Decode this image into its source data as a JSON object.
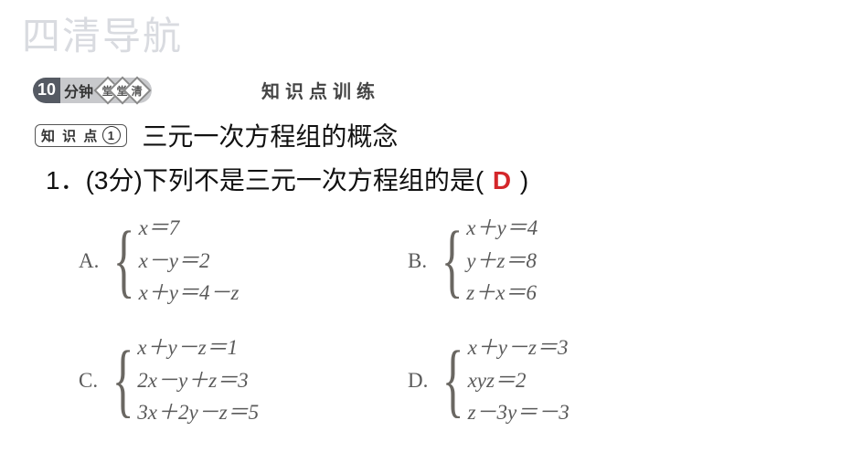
{
  "watermark": "四清导航",
  "header": {
    "pill_number": "10",
    "pill_minutes": "分钟",
    "diamond_labels": [
      "堂",
      "堂",
      "清"
    ],
    "section_title": "知识点训练"
  },
  "knowledge_point": {
    "tag_prefix": "知 识 点",
    "tag_number": "1",
    "title": "三元一次方程组的概念"
  },
  "question": {
    "number": "1．",
    "score": "(3分)",
    "text": "下列不是三元一次方程组的是(",
    "answer_letter": "D",
    "closing": " )"
  },
  "options": {
    "A": {
      "label": "A.",
      "eqs": [
        "x＝7",
        "x－y＝2",
        "x＋y＝4－z"
      ]
    },
    "B": {
      "label": "B.",
      "eqs": [
        "x＋y＝4",
        "y＋z＝8",
        "z＋x＝6"
      ]
    },
    "C": {
      "label": "C.",
      "eqs": [
        "x＋y－z＝1",
        "2x－y＋z＝3",
        "3x＋2y－z＝5"
      ]
    },
    "D": {
      "label": "D.",
      "eqs": [
        "x＋y－z＝3",
        "xyz＝2",
        "z－3y＝－3"
      ]
    }
  },
  "colors": {
    "answer": "#d4262a",
    "text": "#111111",
    "math": "#5a5a5a",
    "watermark": "#d9dbe0"
  }
}
